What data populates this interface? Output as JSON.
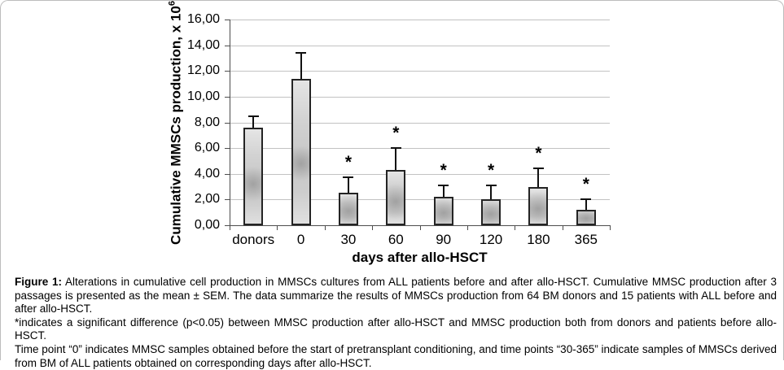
{
  "caption": {
    "label": "Figure 1:",
    "body": " Alterations in cumulative cell production in MMSCs cultures from ALL patients before and after allo-HSCT. Cumulative MMSC production after 3 passages is presented as the mean ± SEM. The data summarize the results of MMSCs production from 64 BM donors and 15 patients with ALL before and after allo-HSCT.",
    "note1": "*indicates a significant difference (p<0.05) between MMSC production after allo-HSCT and MMSC production both from donors and patients before allo-HSCT.",
    "note2": "Time point “0” indicates MMSC samples obtained before the start of pretransplant conditioning, and time points “30-365” indicate samples of MMSCs derived from BM of ALL patients obtained on corresponding days after allo-HSCT."
  },
  "chart_data": {
    "type": "bar",
    "title": "",
    "categories": [
      "donors",
      "0",
      "30",
      "60",
      "90",
      "120",
      "180",
      "365"
    ],
    "values": [
      7.6,
      11.4,
      2.5,
      4.3,
      2.2,
      2.0,
      3.0,
      1.2
    ],
    "errors": [
      0.9,
      2.0,
      1.2,
      1.7,
      0.9,
      1.1,
      1.4,
      0.8
    ],
    "significant": [
      false,
      false,
      true,
      true,
      true,
      true,
      true,
      true
    ],
    "significance_marker": "*",
    "xlabel": "days after allo-HSCT",
    "ylabel": {
      "text": "Cumulative MMSCs production, x 10",
      "superscript": "6"
    },
    "ylim": [
      0,
      16
    ],
    "ytick_step": 2,
    "ytick_labels": [
      "0,00",
      "2,00",
      "4,00",
      "6,00",
      "8,00",
      "10,00",
      "12,00",
      "14,00",
      "16,00"
    ],
    "grid": true,
    "legend": "none",
    "bar_border_color": "#242424",
    "bar_fill_light": "#e5e5e5",
    "bar_fill_dark": "#c7c7c7",
    "error_bar_color": "#111111",
    "grid_color": "#c2c2c2",
    "axis_color": "#4d4d4d"
  }
}
